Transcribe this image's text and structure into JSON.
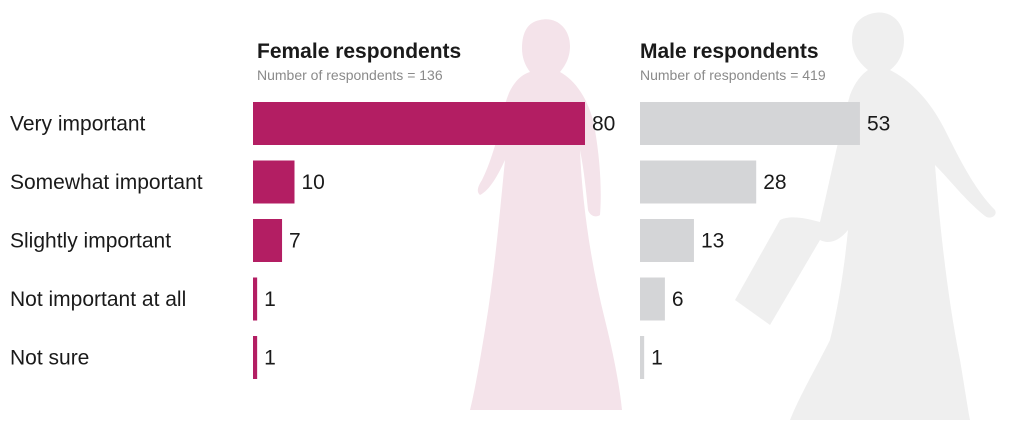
{
  "chart_data": {
    "type": "bar",
    "orientation": "horizontal",
    "categories": [
      "Very important",
      "Somewhat important",
      "Slightly important",
      "Not important at all",
      "Not sure"
    ],
    "panels": [
      {
        "title": "Female respondents",
        "subtitle": "Number of respondents = 136",
        "values": [
          80,
          10,
          7,
          1,
          1
        ],
        "color": "#b31e63",
        "silhouette_color": "#f4e3ea"
      },
      {
        "title": "Male respondents",
        "subtitle": "Number of respondents = 419",
        "values": [
          53,
          28,
          13,
          6,
          1
        ],
        "color": "#d4d5d7",
        "silhouette_color": "#efefef"
      }
    ],
    "xlim": [
      0,
      80
    ],
    "grid": false,
    "legend": "none"
  }
}
